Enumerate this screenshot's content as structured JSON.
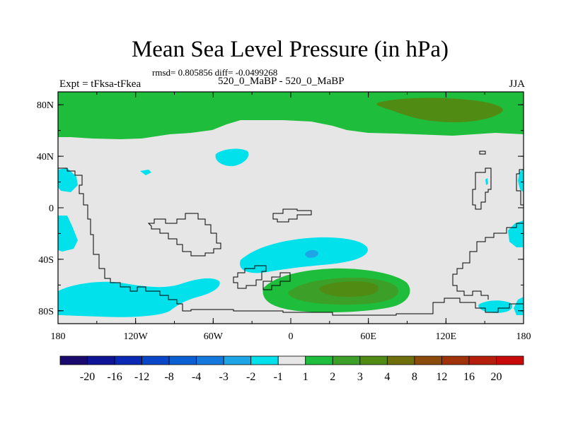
{
  "title": "Mean Sea Level Pressure (in hPa)",
  "stats_line": "rmsd= 0.805856  diff= -0.0499268",
  "experiment_label": "Expt = tFksa-tFkea",
  "subtitle": "520_0_MaBP - 520_0_MaBP",
  "season": "JJA",
  "x_ticks": [
    "180",
    "120W",
    "60W",
    "0",
    "60E",
    "120E",
    "180"
  ],
  "y_ticks": [
    "80N",
    "40N",
    "0",
    "40S",
    "80S"
  ],
  "colorbar": {
    "labels": [
      "-20",
      "-16",
      "-12",
      "-8",
      "-4",
      "-3",
      "-2",
      "-1",
      "1",
      "2",
      "3",
      "4",
      "8",
      "12",
      "16",
      "20"
    ],
    "colors": [
      "#1a0a6e",
      "#0f1496",
      "#0a28b4",
      "#0a46c8",
      "#0a5fd2",
      "#1478dc",
      "#1ea5e6",
      "#00e1eb",
      "#e6e6e6",
      "#1ebe3c",
      "#3ca028",
      "#508c14",
      "#6e6e0a",
      "#8c4b0a",
      "#a0320a",
      "#b41e0a",
      "#c80a0a"
    ]
  },
  "colors": {
    "neutral": "#e6e6e6",
    "cyan": "#00e1eb",
    "blue": "#1ea5e6",
    "green": "#1ebe3c",
    "dark_green": "#3ca028",
    "olive": "#508c14"
  }
}
